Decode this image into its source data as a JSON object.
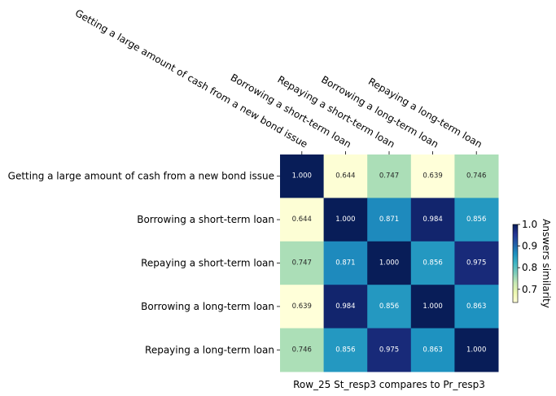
{
  "chart_data": {
    "type": "heatmap",
    "row_labels": [
      "Getting a large amount of cash from a new bond issue",
      "Borrowing a short-term loan",
      "Repaying a short-term loan",
      "Borrowing a long-term loan",
      "Repaying a long-term loan"
    ],
    "col_labels": [
      "Getting a large amount of cash from a new bond issue",
      "Borrowing a short-term loan",
      "Repaying a short-term loan",
      "Borrowing a long-term loan",
      "Repaying a long-term loan"
    ],
    "values": [
      [
        1.0,
        0.644,
        0.747,
        0.639,
        0.746
      ],
      [
        0.644,
        1.0,
        0.871,
        0.984,
        0.856
      ],
      [
        0.747,
        0.871,
        1.0,
        0.856,
        0.975
      ],
      [
        0.639,
        0.984,
        0.856,
        1.0,
        0.863
      ],
      [
        0.746,
        0.856,
        0.975,
        0.863,
        1.0
      ]
    ],
    "value_labels": [
      [
        "1.000",
        "0.644",
        "0.747",
        "0.639",
        "0.746"
      ],
      [
        "0.644",
        "1.000",
        "0.871",
        "0.984",
        "0.856"
      ],
      [
        "0.747",
        "0.871",
        "1.000",
        "0.856",
        "0.975"
      ],
      [
        "0.639",
        "0.984",
        "0.856",
        "1.000",
        "0.863"
      ],
      [
        "0.746",
        "0.856",
        "0.975",
        "0.863",
        "1.000"
      ]
    ],
    "xlabel": "Row_25 St_resp3 compares to Pr_resp3",
    "colorbar": {
      "label": "Answers similarity",
      "range": [
        0.639,
        1.0
      ],
      "ticks": [
        "0.7",
        "0.8",
        "0.9",
        "1.0"
      ],
      "tick_values": [
        0.7,
        0.8,
        0.9,
        1.0
      ],
      "colormap": "YlGnBu"
    },
    "x_ticks_position": "top"
  }
}
